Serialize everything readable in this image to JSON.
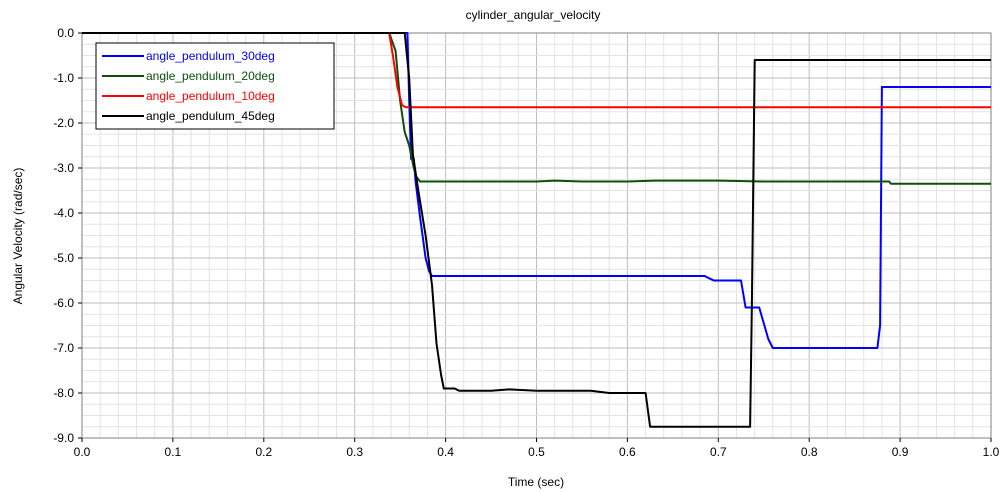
{
  "chart_data": {
    "type": "line",
    "title": "cylinder_angular_velocity",
    "xlabel": "Time (sec)",
    "ylabel": "Angular Velocity (rad/sec)",
    "xlim": [
      0.0,
      1.0
    ],
    "ylim": [
      -9.0,
      0.0
    ],
    "x_ticks": [
      "0.0",
      "0.1",
      "0.2",
      "0.3",
      "0.4",
      "0.5",
      "0.6",
      "0.7",
      "0.8",
      "0.9",
      "1.0"
    ],
    "y_ticks": [
      "0.0",
      "-1.0",
      "-2.0",
      "-3.0",
      "-4.0",
      "-5.0",
      "-6.0",
      "-7.0",
      "-8.0",
      "-9.0"
    ],
    "grid": true,
    "legend_position": "top-left",
    "series": [
      {
        "name": "angle_pendulum_30deg",
        "color": "#0000ff",
        "points": [
          [
            0.0,
            0.0
          ],
          [
            0.358,
            0.0
          ],
          [
            0.36,
            -1.5
          ],
          [
            0.362,
            -2.8
          ],
          [
            0.365,
            -2.8
          ],
          [
            0.367,
            -3.3
          ],
          [
            0.372,
            -4.1
          ],
          [
            0.378,
            -5.0
          ],
          [
            0.382,
            -5.3
          ],
          [
            0.385,
            -5.4
          ],
          [
            0.4,
            -5.4
          ],
          [
            0.5,
            -5.4
          ],
          [
            0.6,
            -5.4
          ],
          [
            0.685,
            -5.4
          ],
          [
            0.69,
            -5.45
          ],
          [
            0.695,
            -5.5
          ],
          [
            0.725,
            -5.5
          ],
          [
            0.73,
            -6.1
          ],
          [
            0.74,
            -6.1
          ],
          [
            0.745,
            -6.1
          ],
          [
            0.755,
            -6.8
          ],
          [
            0.76,
            -7.0
          ],
          [
            0.8,
            -7.0
          ],
          [
            0.875,
            -7.0
          ],
          [
            0.878,
            -6.5
          ],
          [
            0.88,
            -1.2
          ],
          [
            0.9,
            -1.2
          ],
          [
            1.0,
            -1.2
          ]
        ]
      },
      {
        "name": "angle_pendulum_20deg",
        "color": "#0b4f0b",
        "points": [
          [
            0.0,
            0.0
          ],
          [
            0.338,
            0.0
          ],
          [
            0.345,
            -0.4
          ],
          [
            0.35,
            -1.5
          ],
          [
            0.355,
            -2.2
          ],
          [
            0.36,
            -2.5
          ],
          [
            0.365,
            -3.0
          ],
          [
            0.368,
            -3.2
          ],
          [
            0.372,
            -3.3
          ],
          [
            0.4,
            -3.3
          ],
          [
            0.5,
            -3.3
          ],
          [
            0.52,
            -3.28
          ],
          [
            0.55,
            -3.3
          ],
          [
            0.6,
            -3.3
          ],
          [
            0.63,
            -3.28
          ],
          [
            0.7,
            -3.28
          ],
          [
            0.75,
            -3.3
          ],
          [
            0.8,
            -3.3
          ],
          [
            0.888,
            -3.3
          ],
          [
            0.89,
            -3.35
          ],
          [
            1.0,
            -3.35
          ]
        ]
      },
      {
        "name": "angle_pendulum_10deg",
        "color": "#ff0000",
        "points": [
          [
            0.0,
            0.0
          ],
          [
            0.338,
            0.0
          ],
          [
            0.342,
            -0.5
          ],
          [
            0.347,
            -1.2
          ],
          [
            0.352,
            -1.6
          ],
          [
            0.356,
            -1.65
          ],
          [
            0.4,
            -1.65
          ],
          [
            0.6,
            -1.65
          ],
          [
            0.8,
            -1.65
          ],
          [
            1.0,
            -1.65
          ]
        ]
      },
      {
        "name": "angle_pendulum_45deg",
        "color": "#000000",
        "points": [
          [
            0.0,
            0.0
          ],
          [
            0.355,
            0.0
          ],
          [
            0.36,
            -1.0
          ],
          [
            0.364,
            -2.7
          ],
          [
            0.37,
            -3.5
          ],
          [
            0.378,
            -4.5
          ],
          [
            0.385,
            -5.6
          ],
          [
            0.39,
            -6.9
          ],
          [
            0.395,
            -7.6
          ],
          [
            0.398,
            -7.9
          ],
          [
            0.41,
            -7.9
          ],
          [
            0.415,
            -7.95
          ],
          [
            0.45,
            -7.95
          ],
          [
            0.47,
            -7.92
          ],
          [
            0.5,
            -7.95
          ],
          [
            0.56,
            -7.95
          ],
          [
            0.58,
            -8.0
          ],
          [
            0.62,
            -8.0
          ],
          [
            0.625,
            -8.75
          ],
          [
            0.7,
            -8.75
          ],
          [
            0.735,
            -8.75
          ],
          [
            0.737,
            -6.0
          ],
          [
            0.74,
            -0.6
          ],
          [
            0.8,
            -0.6
          ],
          [
            0.9,
            -0.6
          ],
          [
            1.0,
            -0.6
          ]
        ]
      }
    ]
  }
}
